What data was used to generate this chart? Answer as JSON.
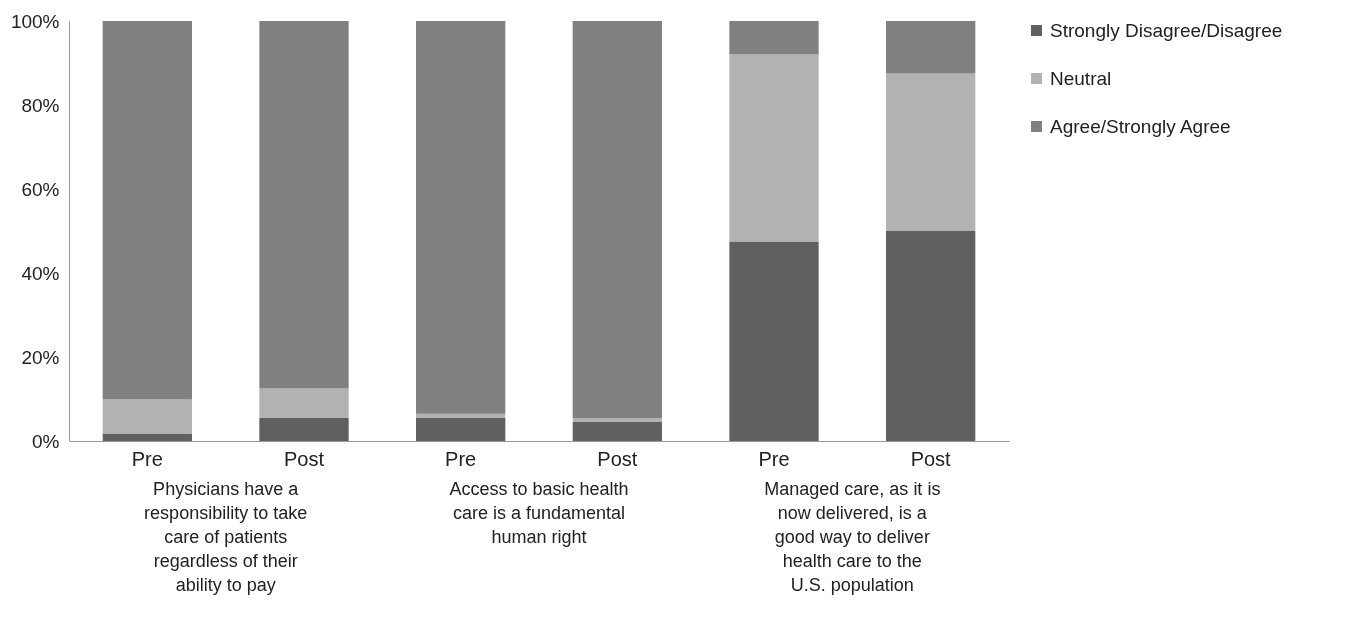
{
  "chart_data": {
    "type": "bar",
    "stacked": true,
    "legend": "right",
    "grid": false,
    "categories": [
      "Pre",
      "Post",
      "Pre",
      "Post",
      "Pre",
      "Post"
    ],
    "series": [
      {
        "name": "Strongly Disagree/Disagree",
        "color": "#606060",
        "values": [
          1.8,
          5.5,
          5.5,
          4.5,
          47.5,
          50.0
        ]
      },
      {
        "name": "Neutral",
        "color": "#b2b2b2",
        "values": [
          8.1,
          7.0,
          1.0,
          1.0,
          44.5,
          37.5
        ]
      },
      {
        "name": "Agree/Strongly Agree",
        "color": "#808080",
        "values": [
          90.1,
          87.5,
          93.5,
          94.5,
          8.0,
          12.5
        ]
      }
    ],
    "ylim": [
      0,
      100
    ],
    "yticks": [
      {
        "value": 0,
        "label": "0%"
      },
      {
        "value": 20,
        "label": "20%"
      },
      {
        "value": 40,
        "label": "40%"
      },
      {
        "value": 60,
        "label": "60%"
      },
      {
        "value": 80,
        "label": "80%"
      },
      {
        "value": 100,
        "label": "100%"
      }
    ],
    "annotations": [
      {
        "text": "Physicians have a responsibility to take care of patients regardless of their ability to pay"
      },
      {
        "text": "Access to basic health care is a fundamental human right"
      },
      {
        "text": "Managed care, as it is now delivered, is a good way to deliver health care to the U.S. population"
      }
    ]
  }
}
